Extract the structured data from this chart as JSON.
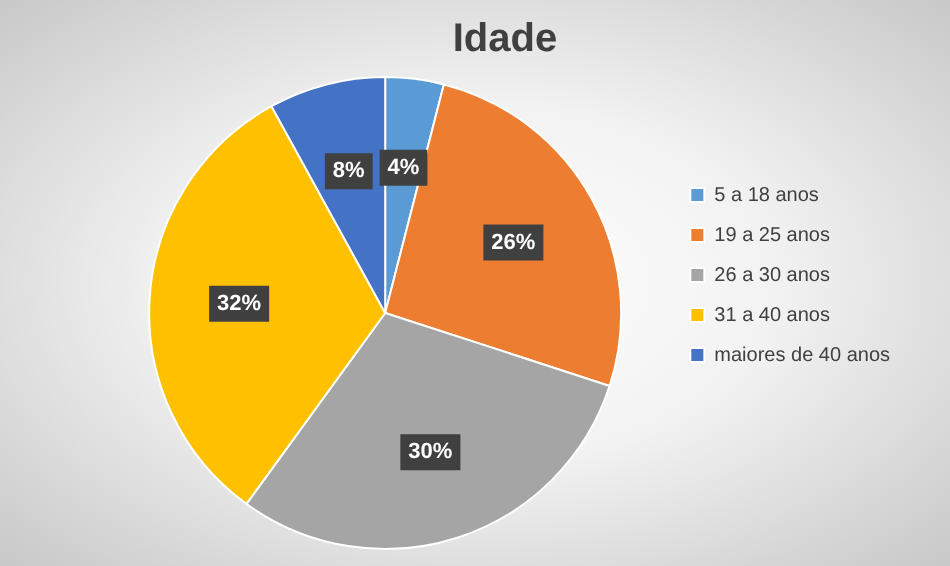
{
  "chart_data": {
    "type": "pie",
    "title": "Idade",
    "categories": [
      "5 a 18 anos",
      "19 a 25 anos",
      "26 a 30 anos",
      "31 a 40 anos",
      "maiores de 40 anos"
    ],
    "values": [
      4,
      26,
      30,
      32,
      8
    ],
    "colors": [
      "#5b9bd5",
      "#ed7d31",
      "#a5a5a5",
      "#ffc000",
      "#4472c4"
    ],
    "value_labels": [
      "4%",
      "26%",
      "30%",
      "32%",
      "8%"
    ],
    "legend": "right"
  }
}
